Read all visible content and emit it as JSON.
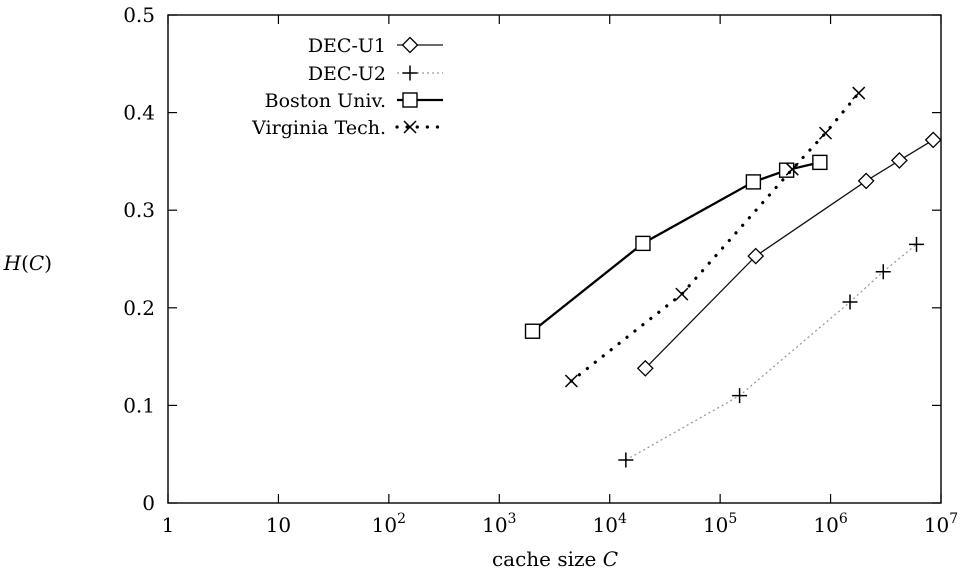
{
  "chart_data": {
    "type": "scatter",
    "xscale": "log",
    "xlim": [
      1,
      10000000
    ],
    "ylim": [
      0,
      0.5
    ],
    "xlabel_prefix": "cache size ",
    "xlabel_var": "C",
    "ylabel_main": "H",
    "ylabel_open": "(",
    "ylabel_var": "C",
    "ylabel_close": ")",
    "x_ticks": [
      {
        "value": 1,
        "base": "1",
        "exp": ""
      },
      {
        "value": 10,
        "base": "10",
        "exp": ""
      },
      {
        "value": 100,
        "base": "10",
        "exp": "2"
      },
      {
        "value": 1000,
        "base": "10",
        "exp": "3"
      },
      {
        "value": 10000,
        "base": "10",
        "exp": "4"
      },
      {
        "value": 100000,
        "base": "10",
        "exp": "5"
      },
      {
        "value": 1000000,
        "base": "10",
        "exp": "6"
      },
      {
        "value": 10000000,
        "base": "10",
        "exp": "7"
      }
    ],
    "y_ticks": [
      {
        "value": 0,
        "label": "0"
      },
      {
        "value": 0.1,
        "label": "0.1"
      },
      {
        "value": 0.2,
        "label": "0.2"
      },
      {
        "value": 0.3,
        "label": "0.3"
      },
      {
        "value": 0.4,
        "label": "0.4"
      },
      {
        "value": 0.5,
        "label": "0.5"
      }
    ],
    "grid": false,
    "legend_position": "top-left",
    "series": [
      {
        "name": "DEC-U1",
        "marker": "diamond",
        "line": "solid-thin",
        "x": [
          21000,
          210000,
          2100000,
          4200000,
          8500000
        ],
        "y": [
          0.138,
          0.253,
          0.33,
          0.351,
          0.372
        ]
      },
      {
        "name": "DEC-U2",
        "marker": "plus",
        "line": "dotted-faint",
        "x": [
          14000,
          150000,
          1500000,
          3000000,
          6000000
        ],
        "y": [
          0.044,
          0.11,
          0.206,
          0.237,
          0.265
        ]
      },
      {
        "name": "Boston Univ.",
        "marker": "square",
        "line": "solid-thick",
        "x": [
          2000,
          20000,
          200000,
          400000,
          800000
        ],
        "y": [
          0.176,
          0.266,
          0.329,
          0.341,
          0.349
        ]
      },
      {
        "name": "Virginia Tech.",
        "marker": "cross",
        "line": "dotted-bold",
        "x": [
          4500,
          45000,
          450000,
          900000,
          1800000
        ],
        "y": [
          0.125,
          0.214,
          0.342,
          0.379,
          0.42
        ]
      }
    ]
  }
}
